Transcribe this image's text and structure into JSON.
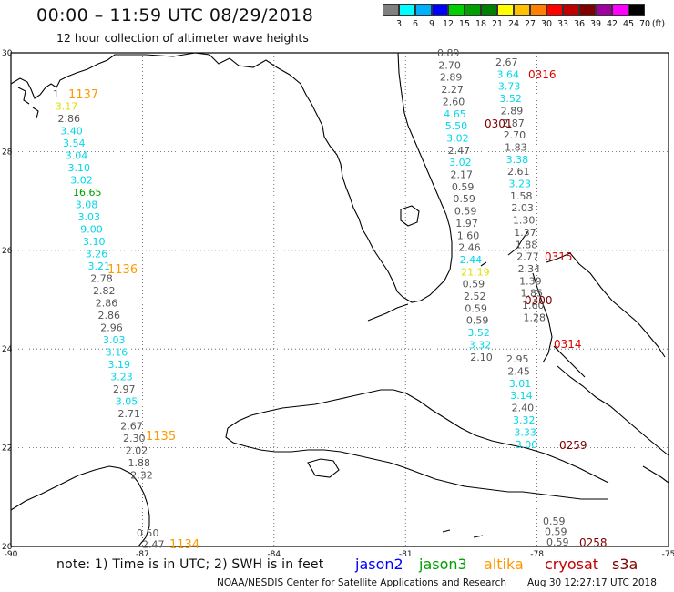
{
  "header": {
    "title": "00:00 – 11:59 UTC 08/29/2018",
    "subtitle": "12 hour collection of altimeter wave heights"
  },
  "colorbar": {
    "unit_label": "(ft)",
    "entries": [
      {
        "label": "3",
        "color": "#808080"
      },
      {
        "label": "6",
        "color": "#00ffff"
      },
      {
        "label": "9",
        "color": "#00b0ff"
      },
      {
        "label": "12",
        "color": "#0000ff"
      },
      {
        "label": "15",
        "color": "#00d000"
      },
      {
        "label": "18",
        "color": "#00a000"
      },
      {
        "label": "21",
        "color": "#008000"
      },
      {
        "label": "24",
        "color": "#ffff00"
      },
      {
        "label": "27",
        "color": "#ffc000"
      },
      {
        "label": "30",
        "color": "#ff8000"
      },
      {
        "label": "33",
        "color": "#ff0000"
      },
      {
        "label": "36",
        "color": "#c00000"
      },
      {
        "label": "39",
        "color": "#800000"
      },
      {
        "label": "42",
        "color": "#a000a0"
      },
      {
        "label": "45",
        "color": "#ff00ff"
      },
      {
        "label": "70",
        "color": "#000000"
      }
    ]
  },
  "map": {
    "lon_range": [
      -90,
      -75
    ],
    "lat_range": [
      20,
      30
    ],
    "lon_labels": [
      "-90",
      "-87",
      "-84",
      "-81",
      "-78",
      "-75"
    ],
    "lat_labels": [
      "20",
      "22",
      "24",
      "26",
      "28",
      "30"
    ],
    "colors": {
      "gray": "#555555",
      "cyan": "#00d8e8",
      "green": "#00a000",
      "yellow": "#e0e000",
      "orange": "#ff9900",
      "red": "#e00000",
      "darkred": "#800000"
    },
    "west_track": [
      {
        "t": "1",
        "c": "gray"
      },
      {
        "t": "3.17",
        "c": "yellow"
      },
      {
        "t": "2.86",
        "c": "gray"
      },
      {
        "t": "3.40",
        "c": "cyan"
      },
      {
        "t": "3.54",
        "c": "cyan"
      },
      {
        "t": "3.04",
        "c": "cyan"
      },
      {
        "t": "3.10",
        "c": "cyan"
      },
      {
        "t": "3.02",
        "c": "cyan"
      },
      {
        "t": "16.65",
        "c": "green"
      },
      {
        "t": "3.08",
        "c": "cyan"
      },
      {
        "t": "3.03",
        "c": "cyan"
      },
      {
        "t": "9.00",
        "c": "cyan"
      },
      {
        "t": "3.10",
        "c": "cyan"
      },
      {
        "t": "3.26",
        "c": "cyan"
      },
      {
        "t": "3.21",
        "c": "cyan"
      },
      {
        "t": "2.78",
        "c": "gray"
      },
      {
        "t": "2.82",
        "c": "gray"
      },
      {
        "t": "2.86",
        "c": "gray"
      },
      {
        "t": "2.86",
        "c": "gray"
      },
      {
        "t": "2.96",
        "c": "gray"
      },
      {
        "t": "3.03",
        "c": "cyan"
      },
      {
        "t": "3.16",
        "c": "cyan"
      },
      {
        "t": "3.19",
        "c": "cyan"
      },
      {
        "t": "3.23",
        "c": "cyan"
      },
      {
        "t": "2.97",
        "c": "gray"
      },
      {
        "t": "3.05",
        "c": "cyan"
      },
      {
        "t": "2.71",
        "c": "gray"
      },
      {
        "t": "2.67",
        "c": "gray"
      },
      {
        "t": "2.30",
        "c": "gray"
      },
      {
        "t": "2.02",
        "c": "gray"
      },
      {
        "t": "1.88",
        "c": "gray"
      },
      {
        "t": "2.32",
        "c": "gray"
      }
    ],
    "west_track_bottom": [
      {
        "t": "0.50",
        "c": "gray"
      },
      {
        "t": "2.47",
        "c": "gray"
      }
    ],
    "track_a": [
      {
        "t": "0.89",
        "c": "gray"
      },
      {
        "t": "2.70",
        "c": "gray"
      },
      {
        "t": "2.89",
        "c": "gray"
      },
      {
        "t": "2.27",
        "c": "gray"
      },
      {
        "t": "2.60",
        "c": "gray"
      },
      {
        "t": "4.65",
        "c": "cyan"
      },
      {
        "t": "5.50",
        "c": "cyan"
      },
      {
        "t": "3.02",
        "c": "cyan"
      },
      {
        "t": "2.47",
        "c": "gray"
      },
      {
        "t": "3.02",
        "c": "cyan"
      },
      {
        "t": "2.17",
        "c": "gray"
      },
      {
        "t": "0.59",
        "c": "gray"
      },
      {
        "t": "0.59",
        "c": "gray"
      },
      {
        "t": "0.59",
        "c": "gray"
      },
      {
        "t": "1.97",
        "c": "gray"
      },
      {
        "t": "1.60",
        "c": "gray"
      },
      {
        "t": "2.46",
        "c": "gray"
      },
      {
        "t": "2.44",
        "c": "cyan"
      },
      {
        "t": "21.19",
        "c": "yellow"
      },
      {
        "t": "0.59",
        "c": "gray"
      },
      {
        "t": "2.52",
        "c": "gray"
      },
      {
        "t": "0.59",
        "c": "gray"
      },
      {
        "t": "0.59",
        "c": "gray"
      },
      {
        "t": "3.52",
        "c": "cyan"
      },
      {
        "t": "3.32",
        "c": "cyan"
      },
      {
        "t": "2.10",
        "c": "gray"
      }
    ],
    "track_b": [
      {
        "t": "2.67",
        "c": "gray"
      },
      {
        "t": "3.64",
        "c": "cyan"
      },
      {
        "t": "3.73",
        "c": "cyan"
      },
      {
        "t": "3.52",
        "c": "cyan"
      },
      {
        "t": "2.89",
        "c": "gray"
      },
      {
        "t": "2.87",
        "c": "gray"
      },
      {
        "t": "2.70",
        "c": "gray"
      },
      {
        "t": "1.83",
        "c": "gray"
      },
      {
        "t": "3.38",
        "c": "cyan"
      },
      {
        "t": "2.61",
        "c": "gray"
      },
      {
        "t": "3.23",
        "c": "cyan"
      },
      {
        "t": "1.58",
        "c": "gray"
      },
      {
        "t": "2.03",
        "c": "gray"
      },
      {
        "t": "1.30",
        "c": "gray"
      },
      {
        "t": "1.37",
        "c": "gray"
      },
      {
        "t": "1.88",
        "c": "gray"
      },
      {
        "t": "2.77",
        "c": "gray"
      },
      {
        "t": "2.34",
        "c": "gray"
      },
      {
        "t": "1.39",
        "c": "gray"
      },
      {
        "t": "1.85",
        "c": "gray"
      },
      {
        "t": "1.60",
        "c": "gray"
      },
      {
        "t": "1.28",
        "c": "gray"
      }
    ],
    "track_c": [
      {
        "t": "2.95",
        "c": "gray"
      },
      {
        "t": "2.45",
        "c": "gray"
      },
      {
        "t": "3.01",
        "c": "cyan"
      },
      {
        "t": "3.14",
        "c": "cyan"
      },
      {
        "t": "2.40",
        "c": "gray"
      },
      {
        "t": "3.32",
        "c": "cyan"
      },
      {
        "t": "3.33",
        "c": "cyan"
      },
      {
        "t": "3.00",
        "c": "cyan"
      }
    ],
    "track_d": [
      {
        "t": "0.59",
        "c": "gray"
      },
      {
        "t": "0.59",
        "c": "gray"
      },
      {
        "t": "0.59",
        "c": "gray"
      }
    ],
    "time_labels": [
      {
        "t": "1137",
        "c": "orange"
      },
      {
        "t": "1136",
        "c": "orange"
      },
      {
        "t": "1135",
        "c": "orange"
      },
      {
        "t": "1134",
        "c": "orange"
      },
      {
        "t": "0316",
        "c": "red"
      },
      {
        "t": "0301",
        "c": "darkred"
      },
      {
        "t": "0315",
        "c": "red"
      },
      {
        "t": "0300",
        "c": "darkred"
      },
      {
        "t": "0314",
        "c": "red"
      },
      {
        "t": "0259",
        "c": "darkred"
      },
      {
        "t": "0258",
        "c": "darkred"
      }
    ]
  },
  "footer": {
    "note": "note: 1) Time is in UTC; 2) SWH is in feet",
    "legend": [
      {
        "label": "jason2",
        "color": "#0000ff"
      },
      {
        "label": "jason3",
        "color": "#00a000"
      },
      {
        "label": "altika",
        "color": "#ff9900"
      },
      {
        "label": "cryosat",
        "color": "#c00000"
      },
      {
        "label": "s3a",
        "color": "#800000"
      }
    ],
    "credit": "NOAA/NESDIS Center for Satellite Applications and Research",
    "timestamp": "Aug 30 12:27:17 UTC 2018"
  }
}
